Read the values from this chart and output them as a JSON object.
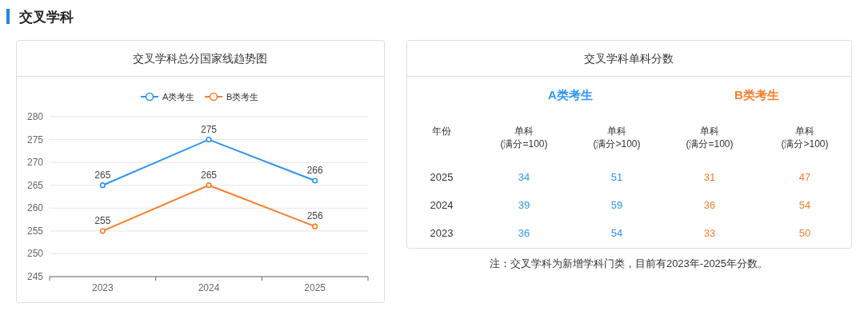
{
  "chart_data": [
    {
      "type": "other",
      "title": "交叉学科"
    },
    {
      "type": "line",
      "title": "交叉学科总分国家线趋势图",
      "categories": [
        "2023",
        "2024",
        "2025"
      ],
      "series": [
        {
          "name": "A类考生",
          "color": "#2f95f0",
          "values": [
            265,
            275,
            266
          ]
        },
        {
          "name": "B类考生",
          "color": "#f77e2b",
          "values": [
            255,
            265,
            256
          ]
        }
      ],
      "ylim": [
        245,
        280
      ],
      "yticks": [
        245,
        250,
        255,
        260,
        265,
        270,
        275,
        280
      ],
      "grid": "y",
      "legend": "top",
      "marker": "circle",
      "data_labels": true
    },
    {
      "type": "other",
      "title": "交叉学科单科分数",
      "annotations": [
        "A类考生",
        "B类考生",
        "年份",
        "单科\n(满分=100)",
        "单科\n(满分>100)",
        "单科\n(满分=100)",
        "单科\n(满分>100)",
        "2025",
        "34",
        "51",
        "31",
        "47",
        "2024",
        "39",
        "59",
        "36",
        "54",
        "2023",
        "36",
        "54",
        "33",
        "50",
        "注：交叉学科为新增学科门类，目前有2023年-2025年分数。"
      ]
    }
  ]
}
